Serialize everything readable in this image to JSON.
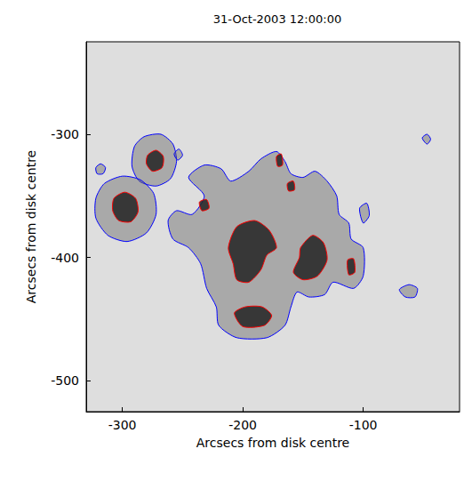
{
  "chart_data": {
    "type": "contour",
    "title": "31-Oct-2003 12:00:00",
    "x_label": "Arcsecs from disk centre",
    "y_label": "Arcsecs from disk centre",
    "xlim": [
      -330,
      -20
    ],
    "ylim": [
      -525,
      -225
    ],
    "xticks": [
      -300,
      -200,
      -100
    ],
    "yticks": [
      -500,
      -400,
      -300
    ],
    "grid": false,
    "series": [
      {
        "color": "#0000ff",
        "contours": [
          [
            [
              -290,
              -310
            ],
            [
              -282,
              -302
            ],
            [
              -268,
              -300
            ],
            [
              -258,
              -308
            ],
            [
              -255,
              -322
            ],
            [
              -260,
              -336
            ],
            [
              -272,
              -342
            ],
            [
              -286,
              -338
            ],
            [
              -292,
              -326
            ]
          ],
          [
            [
              -322,
              -352
            ],
            [
              -315,
              -340
            ],
            [
              -300,
              -334
            ],
            [
              -285,
              -337
            ],
            [
              -274,
              -348
            ],
            [
              -272,
              -365
            ],
            [
              -280,
              -380
            ],
            [
              -296,
              -387
            ],
            [
              -312,
              -382
            ],
            [
              -322,
              -368
            ]
          ],
          [
            [
              -322,
              -327
            ],
            [
              -318,
              -324
            ],
            [
              -314,
              -327
            ],
            [
              -316,
              -332
            ],
            [
              -321,
              -332
            ]
          ],
          [
            [
              -257,
              -316
            ],
            [
              -253,
              -312
            ],
            [
              -250,
              -317
            ],
            [
              -254,
              -321
            ]
          ],
          [
            [
              -245,
              -335
            ],
            [
              -232,
              -325
            ],
            [
              -218,
              -328
            ],
            [
              -210,
              -338
            ],
            [
              -195,
              -330
            ],
            [
              -185,
              -320
            ],
            [
              -172,
              -314
            ],
            [
              -165,
              -322
            ],
            [
              -160,
              -332
            ],
            [
              -150,
              -335
            ],
            [
              -140,
              -330
            ],
            [
              -130,
              -338
            ],
            [
              -122,
              -350
            ],
            [
              -120,
              -365
            ],
            [
              -112,
              -372
            ],
            [
              -110,
              -385
            ],
            [
              -100,
              -392
            ],
            [
              -100,
              -415
            ],
            [
              -108,
              -425
            ],
            [
              -125,
              -420
            ],
            [
              -132,
              -430
            ],
            [
              -145,
              -432
            ],
            [
              -155,
              -428
            ],
            [
              -160,
              -440
            ],
            [
              -165,
              -455
            ],
            [
              -180,
              -465
            ],
            [
              -205,
              -465
            ],
            [
              -220,
              -455
            ],
            [
              -222,
              -440
            ],
            [
              -230,
              -425
            ],
            [
              -235,
              -405
            ],
            [
              -245,
              -392
            ],
            [
              -258,
              -385
            ],
            [
              -262,
              -370
            ],
            [
              -255,
              -362
            ],
            [
              -242,
              -365
            ],
            [
              -232,
              -350
            ]
          ],
          [
            [
              -103,
              -360
            ],
            [
              -97,
              -356
            ],
            [
              -95,
              -366
            ],
            [
              -100,
              -372
            ]
          ],
          [
            [
              -51,
              -303
            ],
            [
              -47,
              -300
            ],
            [
              -44,
              -304
            ],
            [
              -47,
              -308
            ]
          ],
          [
            [
              -70,
              -426
            ],
            [
              -62,
              -422
            ],
            [
              -55,
              -425
            ],
            [
              -57,
              -432
            ],
            [
              -65,
              -432
            ]
          ]
        ]
      },
      {
        "color": "#ff0000",
        "contours": [
          [
            [
              -279,
              -317
            ],
            [
              -272,
              -313
            ],
            [
              -266,
              -318
            ],
            [
              -267,
              -327
            ],
            [
              -275,
              -330
            ],
            [
              -280,
              -324
            ]
          ],
          [
            [
              -307,
              -352
            ],
            [
              -298,
              -347
            ],
            [
              -289,
              -352
            ],
            [
              -287,
              -363
            ],
            [
              -293,
              -371
            ],
            [
              -303,
              -370
            ],
            [
              -308,
              -362
            ]
          ],
          [
            [
              -205,
              -375
            ],
            [
              -190,
              -370
            ],
            [
              -178,
              -378
            ],
            [
              -172,
              -392
            ],
            [
              -180,
              -398
            ],
            [
              -185,
              -410
            ],
            [
              -195,
              -420
            ],
            [
              -205,
              -418
            ],
            [
              -208,
              -405
            ],
            [
              -212,
              -392
            ]
          ],
          [
            [
              -152,
              -392
            ],
            [
              -142,
              -382
            ],
            [
              -133,
              -388
            ],
            [
              -130,
              -402
            ],
            [
              -138,
              -415
            ],
            [
              -150,
              -418
            ],
            [
              -158,
              -412
            ],
            [
              -153,
              -400
            ]
          ],
          [
            [
              -207,
              -445
            ],
            [
              -198,
              -440
            ],
            [
              -184,
              -440
            ],
            [
              -176,
              -447
            ],
            [
              -182,
              -455
            ],
            [
              -200,
              -456
            ]
          ],
          [
            [
              -172,
              -318
            ],
            [
              -168,
              -316
            ],
            [
              -167,
              -325
            ],
            [
              -171,
              -326
            ]
          ],
          [
            [
              -236,
              -355
            ],
            [
              -230,
              -353
            ],
            [
              -228,
              -360
            ],
            [
              -234,
              -362
            ]
          ],
          [
            [
              -113,
              -402
            ],
            [
              -108,
              -401
            ],
            [
              -107,
              -412
            ],
            [
              -112,
              -414
            ]
          ],
          [
            [
              -163,
              -340
            ],
            [
              -158,
              -338
            ],
            [
              -157,
              -345
            ],
            [
              -162,
              -346
            ]
          ]
        ]
      }
    ]
  }
}
